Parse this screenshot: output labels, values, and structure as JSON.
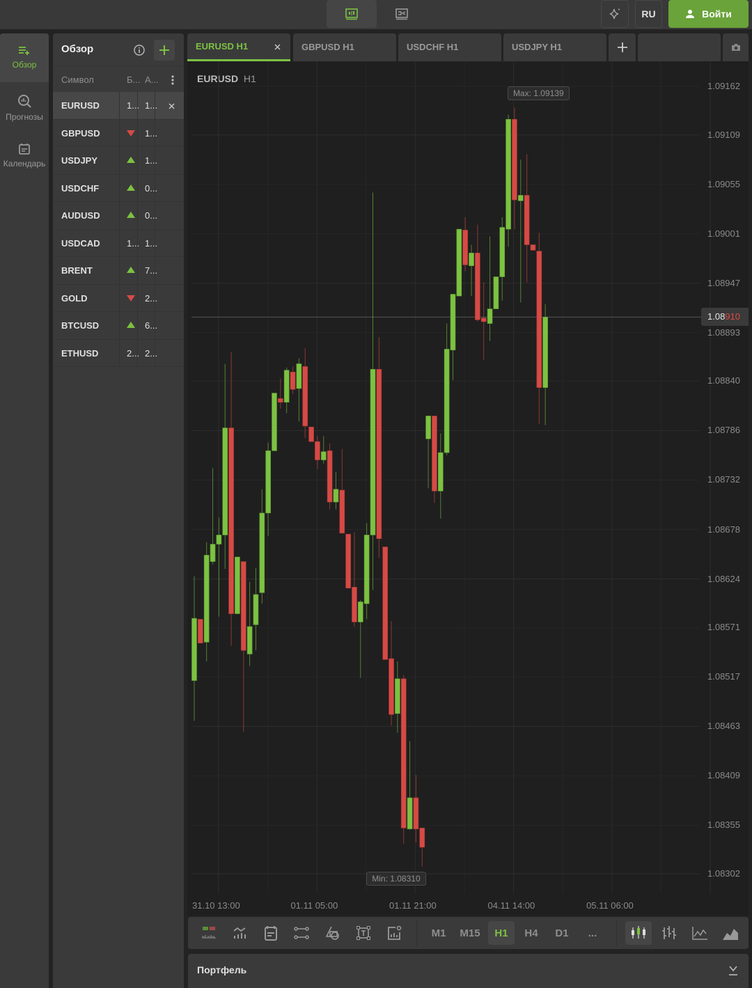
{
  "topbar": {
    "lang_label": "RU",
    "login_label": "Войти",
    "login_color": "#6aa33a"
  },
  "nav": {
    "items": [
      {
        "label": "Обзор",
        "icon": "list-add-icon",
        "active": true
      },
      {
        "label": "Прогнозы",
        "icon": "search-chart-icon",
        "active": false
      },
      {
        "label": "Календарь",
        "icon": "calendar-icon",
        "active": false
      }
    ]
  },
  "watchlist": {
    "title": "Обзор",
    "col_symbol": "Символ",
    "col_bid": "Б...",
    "col_ask": "А...",
    "rows": [
      {
        "symbol": "EURUSD",
        "bid": "1...",
        "ask": "1...",
        "trend": "",
        "selected": true
      },
      {
        "symbol": "GBPUSD",
        "bid": "",
        "ask": "1...",
        "trend": "down"
      },
      {
        "symbol": "USDJPY",
        "bid": "",
        "ask": "1...",
        "trend": "up"
      },
      {
        "symbol": "USDCHF",
        "bid": "",
        "ask": "0...",
        "trend": "up"
      },
      {
        "symbol": "AUDUSD",
        "bid": "",
        "ask": "0...",
        "trend": "up"
      },
      {
        "symbol": "USDCAD",
        "bid": "1...",
        "ask": "1...",
        "trend": ""
      },
      {
        "symbol": "BRENT",
        "bid": "",
        "ask": "7...",
        "trend": "up"
      },
      {
        "symbol": "GOLD",
        "bid": "",
        "ask": "2...",
        "trend": "down"
      },
      {
        "symbol": "BTCUSD",
        "bid": "",
        "ask": "6...",
        "trend": "up"
      },
      {
        "symbol": "ETHUSD",
        "bid": "2...",
        "ask": "2...",
        "trend": ""
      }
    ]
  },
  "tabs": [
    {
      "label": "EURUSD H1",
      "active": true
    },
    {
      "label": "GBPUSD H1"
    },
    {
      "label": "USDCHF H1"
    },
    {
      "label": "USDJPY H1"
    }
  ],
  "chart_header": {
    "symbol": "EURUSD",
    "timeframe": "H1"
  },
  "price_tag": {
    "main": "1.08",
    "highlight": "910"
  },
  "max_label": "Max: 1.09139",
  "min_label": "Min: 1.08310",
  "toolbar": {
    "timeframes": [
      "M1",
      "M15",
      "H1",
      "H4",
      "D1",
      "..."
    ],
    "active_timeframe": "H1",
    "active_chart_type": "candles"
  },
  "portfolio": {
    "title": "Портфель"
  },
  "colors": {
    "up": "#7cc242",
    "down": "#d64a45",
    "accent": "#7cc242"
  },
  "chart_data": {
    "type": "candlestick",
    "symbol": "EURUSD",
    "timeframe": "H1",
    "current_price": 1.0891,
    "max": 1.09139,
    "min": 1.0831,
    "y_ticks": [
      1.09162,
      1.09109,
      1.09055,
      1.09001,
      1.08947,
      1.08893,
      1.0884,
      1.08786,
      1.08732,
      1.08678,
      1.08624,
      1.08571,
      1.08517,
      1.08463,
      1.08409,
      1.08355,
      1.08302
    ],
    "x_ticks": [
      {
        "index": 0,
        "label": "31.10 13:00"
      },
      {
        "index": 16,
        "label": "01.11 05:00"
      },
      {
        "index": 32,
        "label": "01.11 21:00"
      },
      {
        "index": 48,
        "label": "04.11 14:00"
      },
      {
        "index": 64,
        "label": "05.11 06:00"
      }
    ],
    "ohlc": [
      [
        1.08513,
        1.08627,
        1.08469,
        1.08581
      ],
      [
        1.0858,
        1.0858,
        1.08554,
        1.08554
      ],
      [
        1.08555,
        1.08664,
        1.08534,
        1.0865
      ],
      [
        1.08643,
        1.08745,
        1.0864,
        1.08662
      ],
      [
        1.08662,
        1.08691,
        1.08583,
        1.08672
      ],
      [
        1.08672,
        1.08859,
        1.08635,
        1.08789
      ],
      [
        1.08789,
        1.08872,
        1.08551,
        1.08586
      ],
      [
        1.08586,
        1.08648,
        1.08586,
        1.08648
      ],
      [
        1.08643,
        1.08643,
        1.08457,
        1.08546
      ],
      [
        1.08542,
        1.08621,
        1.08529,
        1.08572
      ],
      [
        1.08574,
        1.08636,
        1.08546,
        1.08607
      ],
      [
        1.08609,
        1.08722,
        1.08597,
        1.08696
      ],
      [
        1.08696,
        1.08773,
        1.08671,
        1.08764
      ],
      [
        1.08764,
        1.08827,
        1.08764,
        1.08827
      ],
      [
        1.08821,
        1.08843,
        1.0881,
        1.08817
      ],
      [
        1.08817,
        1.08855,
        1.08805,
        1.08852
      ],
      [
        1.0885,
        1.08856,
        1.08826,
        1.08831
      ],
      [
        1.08832,
        1.08865,
        1.08796,
        1.08859
      ],
      [
        1.08856,
        1.08876,
        1.08778,
        1.08791
      ],
      [
        1.0879,
        1.0879,
        1.08774,
        1.08774
      ],
      [
        1.08774,
        1.0878,
        1.08744,
        1.08754
      ],
      [
        1.08754,
        1.0878,
        1.0875,
        1.08763
      ],
      [
        1.08764,
        1.08772,
        1.087,
        1.08708
      ],
      [
        1.08708,
        1.08741,
        1.087,
        1.08722
      ],
      [
        1.08721,
        1.08766,
        1.08674,
        1.08674
      ],
      [
        1.08673,
        1.08673,
        1.08614,
        1.08614
      ],
      [
        1.08615,
        1.08675,
        1.08572,
        1.08577
      ],
      [
        1.08577,
        1.08601,
        1.08516,
        1.08599
      ],
      [
        1.08597,
        1.08685,
        1.0858,
        1.08672
      ],
      [
        1.08672,
        1.09046,
        1.08612,
        1.08853
      ],
      [
        1.08853,
        1.08888,
        1.08647,
        1.08668
      ],
      [
        1.08659,
        1.08659,
        1.08536,
        1.08536
      ],
      [
        1.08537,
        1.08578,
        1.08464,
        1.08476
      ],
      [
        1.08477,
        1.08534,
        1.08456,
        1.08515
      ],
      [
        1.08515,
        1.08519,
        1.08335,
        1.08352
      ],
      [
        1.08351,
        1.08447,
        1.0835,
        1.08385
      ],
      [
        1.08385,
        1.0841,
        1.08336,
        1.08351
      ],
      [
        1.08352,
        1.08352,
        1.0831,
        1.08331
      ],
      [
        1.08777,
        1.08802,
        1.08723,
        1.08802
      ],
      [
        1.08802,
        1.08802,
        1.08707,
        1.0872
      ],
      [
        1.0872,
        1.08783,
        1.0869,
        1.08762
      ],
      [
        1.08762,
        1.08903,
        1.08759,
        1.08875
      ],
      [
        1.08874,
        1.08935,
        1.08841,
        1.08935
      ],
      [
        1.08933,
        1.09006,
        1.08933,
        1.09006
      ],
      [
        1.09005,
        1.09019,
        1.0896,
        1.08967
      ],
      [
        1.08966,
        1.08989,
        1.08933,
        1.0898
      ],
      [
        1.0898,
        1.09011,
        1.08905,
        1.08907
      ],
      [
        1.08909,
        1.08948,
        1.08863,
        1.08905
      ],
      [
        1.08903,
        1.08998,
        1.08884,
        1.08919
      ],
      [
        1.08919,
        1.08954,
        1.08919,
        1.08954
      ],
      [
        1.08954,
        1.09019,
        1.08928,
        1.09008
      ],
      [
        1.09006,
        1.09131,
        1.08987,
        1.09126
      ],
      [
        1.09126,
        1.09139,
        1.09006,
        1.09038
      ],
      [
        1.09037,
        1.09082,
        1.08926,
        1.09043
      ],
      [
        1.09043,
        1.09088,
        1.08948,
        1.08989
      ],
      [
        1.08989,
        1.08989,
        1.08983,
        1.08983
      ],
      [
        1.08982,
        1.09002,
        1.08793,
        1.08833
      ],
      [
        1.08833,
        1.08924,
        1.08792,
        1.0891
      ]
    ]
  }
}
